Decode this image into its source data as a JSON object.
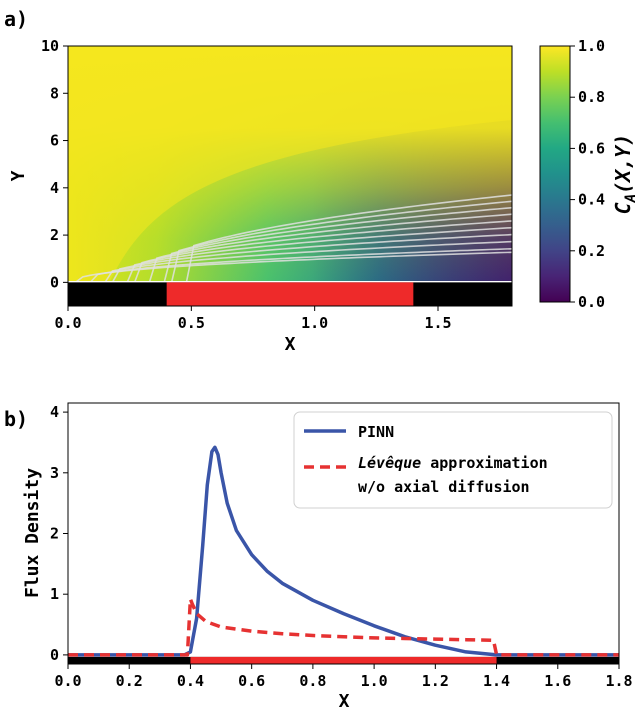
{
  "panel_labels": [
    "a)",
    "b)"
  ],
  "chart_data": [
    {
      "type": "heatmap",
      "panel": "a)",
      "xlabel": "X",
      "ylabel": "Y",
      "xlim": [
        0.0,
        1.8
      ],
      "ylim": [
        -1,
        10
      ],
      "x_ticks": [
        "0.0",
        "0.5",
        "1.0",
        "1.5"
      ],
      "x_tick_values": [
        0.0,
        0.5,
        1.0,
        1.5
      ],
      "y_ticks": [
        "0",
        "2",
        "4",
        "6",
        "8",
        "10"
      ],
      "y_tick_values": [
        0,
        2,
        4,
        6,
        8,
        10
      ],
      "colorbar": {
        "label": "C_A(X,Y)",
        "label_main": "C",
        "label_sub": "A",
        "label_tail": "(X,Y)",
        "colormap": "viridis",
        "range": [
          0.0,
          1.0
        ],
        "ticks": [
          "0.0",
          "0.2",
          "0.4",
          "0.6",
          "0.8",
          "1.0"
        ],
        "tick_values": [
          0.0,
          0.2,
          0.4,
          0.6,
          0.8,
          1.0
        ]
      },
      "wall": {
        "y_range": [
          -1,
          0
        ],
        "inert_color": "#000000",
        "electrode_color": "#ee2a2a",
        "electrode_x": [
          0.4,
          1.4
        ]
      },
      "contour_levels": [
        0.95,
        0.9,
        0.8,
        0.7,
        0.6,
        0.5,
        0.4,
        0.3,
        0.2,
        0.1
      ],
      "contour_color": "#e0e0e0"
    },
    {
      "type": "line",
      "panel": "b)",
      "xlabel": "X",
      "ylabel": "Flux Density",
      "xlim": [
        0.0,
        1.8
      ],
      "ylim": [
        -0.15,
        4.15
      ],
      "x_ticks": [
        "0.0",
        "0.2",
        "0.4",
        "0.6",
        "0.8",
        "1.0",
        "1.2",
        "1.4",
        "1.6",
        "1.8"
      ],
      "x_tick_values": [
        0.0,
        0.2,
        0.4,
        0.6,
        0.8,
        1.0,
        1.2,
        1.4,
        1.6,
        1.8
      ],
      "y_ticks": [
        "0",
        "1",
        "2",
        "3",
        "4"
      ],
      "y_tick_values": [
        0,
        1,
        2,
        3,
        4
      ],
      "wall": {
        "inert_color": "#000000",
        "electrode_color": "#ee2a2a",
        "electrode_x": [
          0.4,
          1.4
        ]
      },
      "legend_position": "top-right",
      "series": [
        {
          "name": "PINN",
          "color": "#3a55a8",
          "style": "solid",
          "x": [
            0.0,
            0.38,
            0.4,
            0.42,
            0.44,
            0.455,
            0.47,
            0.48,
            0.49,
            0.5,
            0.52,
            0.55,
            0.6,
            0.65,
            0.7,
            0.8,
            0.9,
            1.0,
            1.1,
            1.2,
            1.3,
            1.4,
            1.8
          ],
          "y": [
            0.0,
            0.0,
            0.05,
            0.6,
            1.8,
            2.8,
            3.35,
            3.42,
            3.3,
            3.0,
            2.5,
            2.05,
            1.65,
            1.38,
            1.18,
            0.9,
            0.68,
            0.48,
            0.3,
            0.16,
            0.05,
            0.0,
            0.0
          ]
        },
        {
          "name_prefix": "Lévêque",
          "name_rest": " approximation",
          "name_line2": "w/o axial diffusion",
          "color": "#e63232",
          "style": "dashed",
          "x": [
            0.0,
            0.39,
            0.4,
            0.405,
            0.42,
            0.45,
            0.5,
            0.6,
            0.7,
            0.8,
            0.9,
            1.0,
            1.1,
            1.2,
            1.3,
            1.39,
            1.4,
            1.8
          ],
          "y": [
            0.0,
            0.0,
            0.92,
            0.85,
            0.68,
            0.55,
            0.46,
            0.39,
            0.35,
            0.32,
            0.3,
            0.28,
            0.27,
            0.26,
            0.25,
            0.24,
            0.0,
            0.0
          ]
        }
      ]
    }
  ]
}
